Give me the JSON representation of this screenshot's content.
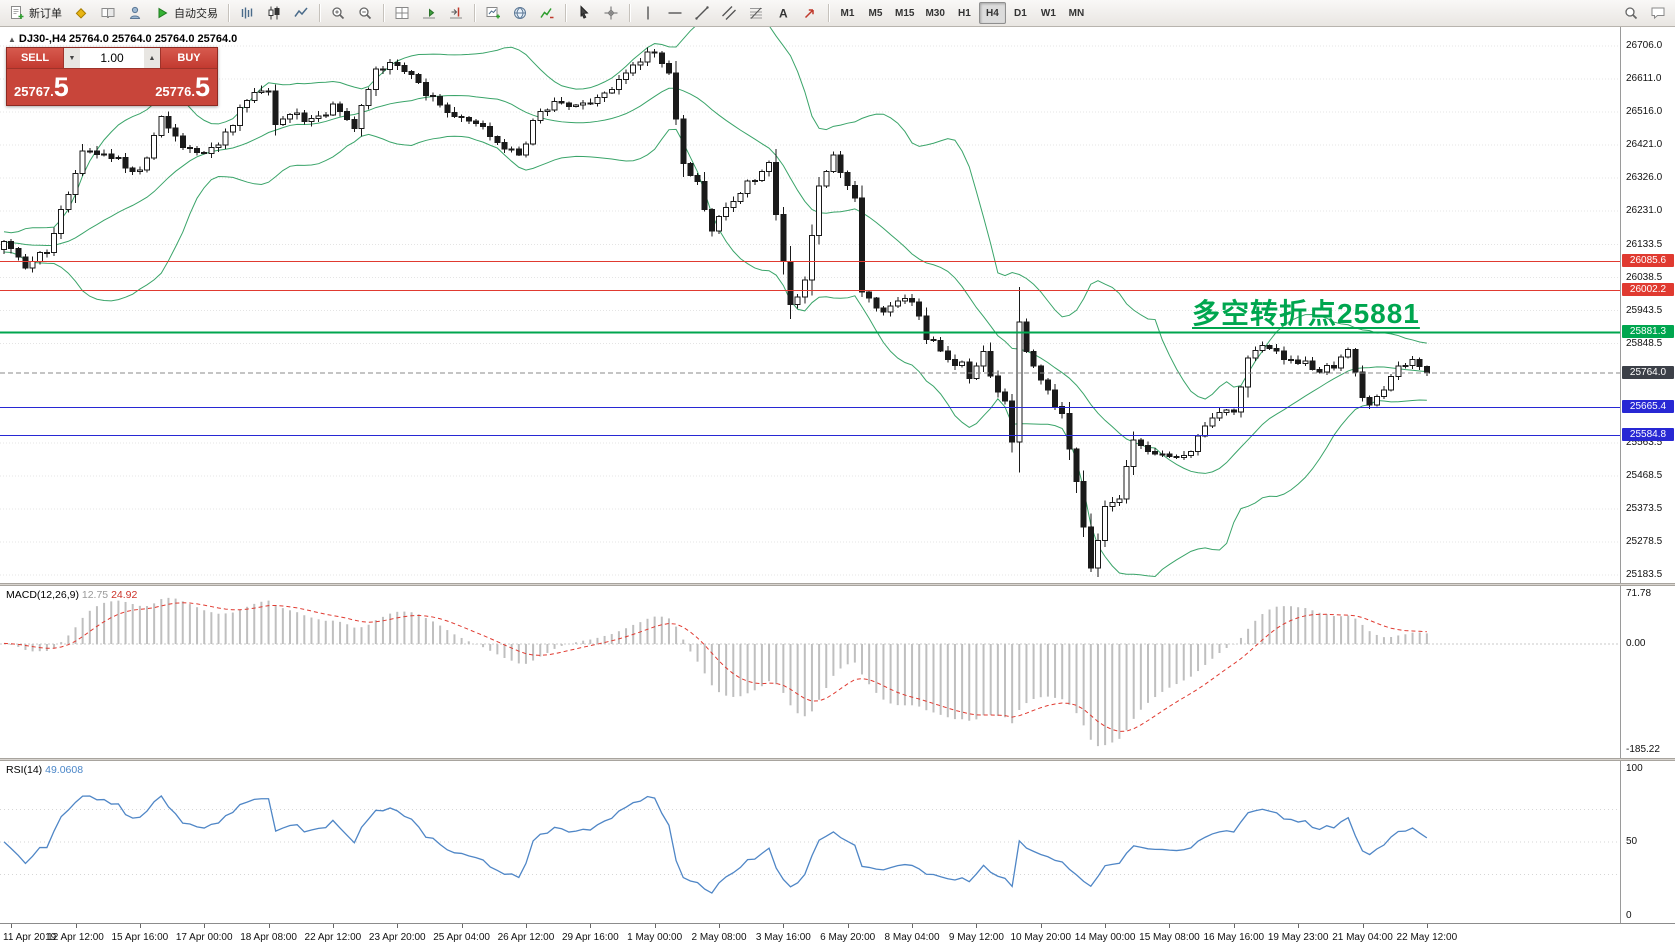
{
  "icons": {
    "collapse_triangle": "▲",
    "volume_up": "▲",
    "volume_down": "▼"
  },
  "toolbar": {
    "buttons_left": [
      {
        "name": "new-order-button",
        "icon": "new-order",
        "label": "新订单"
      },
      {
        "name": "metaeditor-button",
        "icon": "diamond",
        "label": ""
      },
      {
        "name": "market-watch-button",
        "icon": "book",
        "label": ""
      },
      {
        "name": "navigator-button",
        "icon": "person",
        "label": ""
      },
      {
        "name": "autotrading-button",
        "icon": "play",
        "label": "自动交易"
      }
    ],
    "chart_type_buttons": [
      {
        "name": "bar-chart-button",
        "icon": "bars"
      },
      {
        "name": "candlestick-chart-button",
        "icon": "candles"
      },
      {
        "name": "line-chart-button",
        "icon": "line"
      }
    ],
    "zoom_buttons": [
      {
        "name": "zoom-in-button",
        "icon": "zoom-in"
      },
      {
        "name": "zoom-out-button",
        "icon": "zoom-out"
      }
    ],
    "layout_buttons": [
      {
        "name": "tile-windows-button",
        "icon": "grid"
      },
      {
        "name": "auto-scroll-button",
        "icon": "scroll"
      },
      {
        "name": "chart-shift-button",
        "icon": "shift"
      }
    ],
    "window_buttons": [
      {
        "name": "new-chart-button",
        "icon": "new-chart"
      },
      {
        "name": "profiles-button",
        "icon": "globe"
      },
      {
        "name": "indicators-button",
        "icon": "indicator"
      }
    ],
    "pointer_buttons": [
      {
        "name": "cursor-button",
        "icon": "cursor"
      },
      {
        "name": "crosshair-button",
        "icon": "crosshair"
      }
    ],
    "drawing_buttons": [
      {
        "name": "vertical-line-button",
        "icon": "vline"
      },
      {
        "name": "horizontal-line-button",
        "icon": "hline"
      },
      {
        "name": "trendline-button",
        "icon": "trend"
      },
      {
        "name": "channel-button",
        "icon": "channel"
      },
      {
        "name": "fibonacci-button",
        "icon": "fibo"
      },
      {
        "name": "text-button",
        "icon": "text"
      },
      {
        "name": "arrow-button",
        "icon": "arrow"
      }
    ],
    "timeframes": {
      "options": [
        "M1",
        "M5",
        "M15",
        "M30",
        "H1",
        "H4",
        "D1",
        "W1",
        "MN"
      ],
      "active": "H4"
    },
    "buttons_right": [
      {
        "name": "search-button",
        "icon": "search"
      },
      {
        "name": "chat-button",
        "icon": "chat"
      }
    ]
  },
  "chart_header": {
    "symbol_period": "DJ30-,H4",
    "ohlc": [
      "25764.0",
      "25764.0",
      "25764.0",
      "25764.0"
    ]
  },
  "one_click": {
    "sell_label": "SELL",
    "buy_label": "BUY",
    "volume": "1.00",
    "sell_price": "25767.5",
    "buy_price": "25776.5"
  },
  "annotation": {
    "text": "多空转折点25881",
    "color": "#00a64f",
    "anchor_price": 25881.3
  },
  "price_axis": {
    "labels": [
      {
        "text": "26706.0",
        "value": 26706.0
      },
      {
        "text": "26611.0",
        "value": 26611.0
      },
      {
        "text": "26516.0",
        "value": 26516.0
      },
      {
        "text": "26421.0",
        "value": 26421.0
      },
      {
        "text": "26326.0",
        "value": 26326.0
      },
      {
        "text": "26231.0",
        "value": 26231.0
      },
      {
        "text": "26133.5",
        "value": 26133.5
      },
      {
        "text": "26038.5",
        "value": 26038.5
      },
      {
        "text": "25943.5",
        "value": 25943.5
      },
      {
        "text": "25848.5",
        "value": 25848.5
      },
      {
        "text": "25563.5",
        "value": 25563.5
      },
      {
        "text": "25468.5",
        "value": 25468.5
      },
      {
        "text": "25373.5",
        "value": 25373.5
      },
      {
        "text": "25278.5",
        "value": 25278.5
      },
      {
        "text": "25183.5",
        "value": 25183.5
      }
    ]
  },
  "price_lines": [
    {
      "name": "resistance-1",
      "label": "26085.6",
      "value": 26085.6,
      "color": "#e03a30",
      "badge": "#e03a30",
      "width": 1
    },
    {
      "name": "resistance-2",
      "label": "26002.2",
      "value": 26002.2,
      "color": "#e03a30",
      "badge": "#e03a30",
      "width": 1
    },
    {
      "name": "pivot",
      "label": "25881.3",
      "value": 25881.3,
      "color": "#00a64f",
      "badge": "#00a64f",
      "width": 2
    },
    {
      "name": "current-price",
      "label": "25764.0",
      "value": 25764.0,
      "color": "#8a8a8a",
      "badge": "#3c4048",
      "width": 1,
      "dashed": true
    },
    {
      "name": "support-1",
      "label": "25665.4",
      "value": 25665.4,
      "color": "#2828d4",
      "badge": "#2828d4",
      "width": 1
    },
    {
      "name": "support-2",
      "label": "25584.8",
      "value": 25584.8,
      "color": "#2828d4",
      "badge": "#2828d4",
      "width": 1
    }
  ],
  "macd": {
    "title": "MACD(12,26,9)",
    "value_main": "12.75",
    "value_signal": "24.92",
    "axis": {
      "max": "71.78",
      "zero": "0.00",
      "min": "-185.22"
    }
  },
  "rsi": {
    "title": "RSI(14)",
    "value": "49.0608",
    "axis": {
      "top": "100",
      "mid": "50",
      "bottom": "0"
    }
  },
  "time_axis": {
    "labels": [
      "11 Apr 2019",
      "12 Apr 12:00",
      "15 Apr 16:00",
      "17 Apr 00:00",
      "18 Apr 08:00",
      "22 Apr 12:00",
      "23 Apr 20:00",
      "25 Apr 04:00",
      "26 Apr 12:00",
      "29 Apr 16:00",
      "1 May 00:00",
      "2 May 08:00",
      "3 May 16:00",
      "6 May 20:00",
      "8 May 04:00",
      "9 May 12:00",
      "10 May 20:00",
      "14 May 00:00",
      "15 May 08:00",
      "16 May 16:00",
      "19 May 23:00",
      "21 May 04:00",
      "22 May 12:00"
    ]
  },
  "chart_data": {
    "type": "candlestick+indicators",
    "symbol": "DJ30",
    "timeframe": "H4",
    "bars": 200,
    "bar_spacing": 7.15,
    "seed": 7,
    "price_range": [
      25160,
      26760
    ],
    "time_label_start": 1,
    "time_label_step": 9,
    "indicators": [
      {
        "name": "Bollinger Bands",
        "period": 20,
        "deviation": 2,
        "color": "#3aa469"
      },
      {
        "name": "MACD",
        "fast": 12,
        "slow": 26,
        "signal": 9,
        "histogram_color": "#bfbfbf",
        "signal_color": "#e03a30"
      },
      {
        "name": "RSI",
        "period": 14,
        "color": "#4f86c6"
      }
    ],
    "price_path": [
      [
        0,
        26145
      ],
      [
        3,
        26060
      ],
      [
        6,
        26120
      ],
      [
        8,
        26230
      ],
      [
        11,
        26400
      ],
      [
        15,
        26385
      ],
      [
        19,
        26340
      ],
      [
        22,
        26490
      ],
      [
        25,
        26420
      ],
      [
        28,
        26390
      ],
      [
        31,
        26450
      ],
      [
        34,
        26555
      ],
      [
        37,
        26575
      ],
      [
        38,
        26480
      ],
      [
        40,
        26510
      ],
      [
        43,
        26495
      ],
      [
        46,
        26530
      ],
      [
        49,
        26480
      ],
      [
        52,
        26630
      ],
      [
        54,
        26665
      ],
      [
        57,
        26620
      ],
      [
        59,
        26560
      ],
      [
        61,
        26545
      ],
      [
        63,
        26495
      ],
      [
        66,
        26480
      ],
      [
        69,
        26435
      ],
      [
        72,
        26390
      ],
      [
        74,
        26480
      ],
      [
        76,
        26530
      ],
      [
        78,
        26545
      ],
      [
        81,
        26530
      ],
      [
        83,
        26560
      ],
      [
        85,
        26575
      ],
      [
        87,
        26635
      ],
      [
        90,
        26685
      ],
      [
        92,
        26665
      ],
      [
        93,
        26620
      ],
      [
        95,
        26360
      ],
      [
        97,
        26310
      ],
      [
        99,
        26175
      ],
      [
        101,
        26250
      ],
      [
        103,
        26285
      ],
      [
        105,
        26330
      ],
      [
        107,
        26375
      ],
      [
        109,
        26085
      ],
      [
        110,
        25960
      ],
      [
        112,
        26020
      ],
      [
        114,
        26295
      ],
      [
        116,
        26390
      ],
      [
        117,
        26345
      ],
      [
        119,
        26265
      ],
      [
        120,
        26005
      ],
      [
        122,
        25945
      ],
      [
        123,
        25930
      ],
      [
        125,
        25960
      ],
      [
        126,
        25990
      ],
      [
        128,
        25930
      ],
      [
        129,
        25870
      ],
      [
        131,
        25835
      ],
      [
        132,
        25805
      ],
      [
        134,
        25790
      ],
      [
        135,
        25745
      ],
      [
        137,
        25820
      ],
      [
        138,
        25745
      ],
      [
        140,
        25685
      ],
      [
        141,
        25560
      ],
      [
        142,
        25900
      ],
      [
        144,
        25775
      ],
      [
        146,
        25715
      ],
      [
        148,
        25640
      ],
      [
        150,
        25440
      ],
      [
        151,
        25315
      ],
      [
        152,
        25210
      ],
      [
        153,
        25280
      ],
      [
        154,
        25375
      ],
      [
        156,
        25410
      ],
      [
        158,
        25560
      ],
      [
        160,
        25545
      ],
      [
        162,
        25530
      ],
      [
        164,
        25515
      ],
      [
        166,
        25530
      ],
      [
        168,
        25620
      ],
      [
        170,
        25655
      ],
      [
        172,
        25640
      ],
      [
        174,
        25805
      ],
      [
        176,
        25835
      ],
      [
        178,
        25820
      ],
      [
        180,
        25790
      ],
      [
        182,
        25805
      ],
      [
        184,
        25760
      ],
      [
        186,
        25790
      ],
      [
        188,
        25835
      ],
      [
        190,
        25685
      ],
      [
        191,
        25668
      ],
      [
        193,
        25715
      ],
      [
        195,
        25775
      ],
      [
        197,
        25805
      ],
      [
        198,
        25790
      ],
      [
        199,
        25764
      ]
    ]
  }
}
